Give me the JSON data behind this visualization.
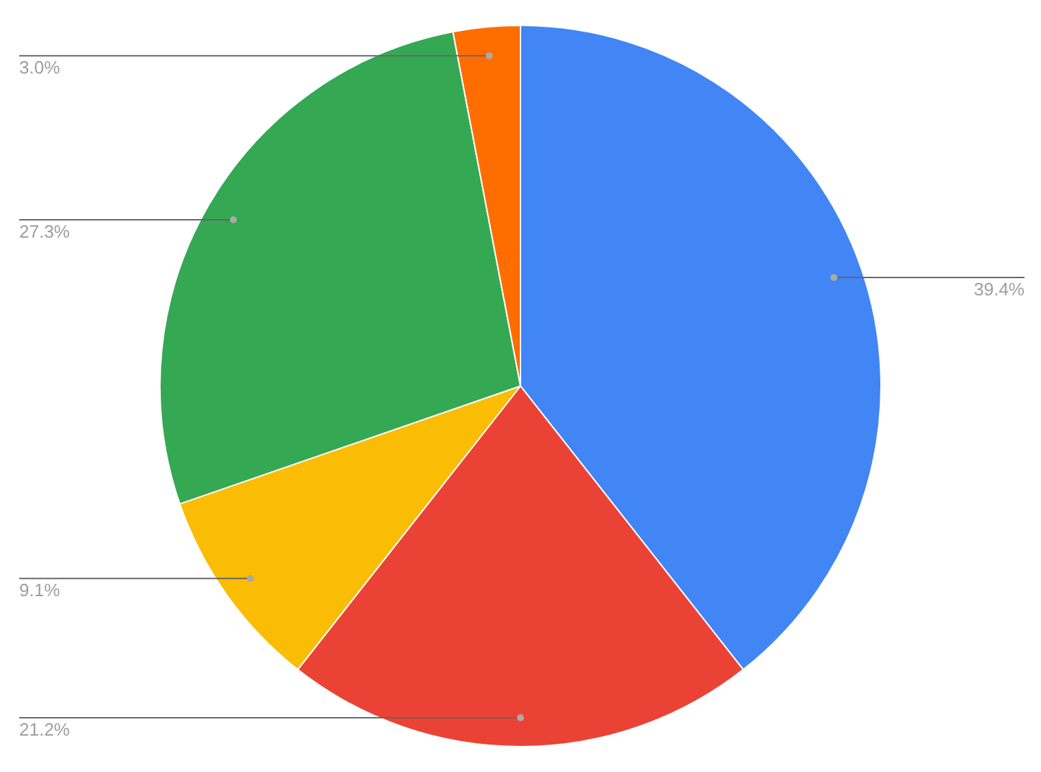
{
  "chart_data": {
    "type": "pie",
    "categories": [
      null,
      null,
      null,
      null,
      null
    ],
    "values": [
      39.4,
      21.2,
      9.1,
      27.3,
      3.0
    ],
    "colors": [
      "#4285f4",
      "#ea4335",
      "#fbbc04",
      "#34a853",
      "#ff6d01"
    ],
    "value_labels": [
      "39.4%",
      "21.2%",
      "9.1%",
      "27.3%",
      "3.0%"
    ],
    "legend": false
  }
}
